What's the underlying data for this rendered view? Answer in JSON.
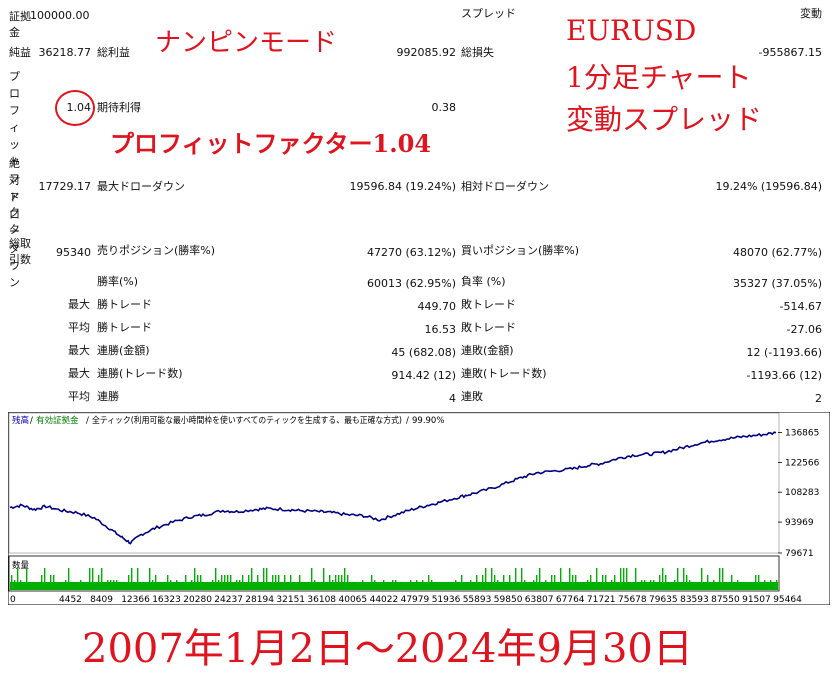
{
  "report": {
    "deposit": {
      "label": "証拠金",
      "value": "100000.00"
    },
    "spread": {
      "label": "スプレッド",
      "value": "変動"
    },
    "net_profit": {
      "label": "純益",
      "value": "36218.77"
    },
    "gross_profit": {
      "label": "総利益",
      "value": "992085.92"
    },
    "gross_loss": {
      "label": "総損失",
      "value": "-955867.15"
    },
    "profit_factor": {
      "label": "プロフィットファクタ",
      "value": "1.04"
    },
    "expected_payoff": {
      "label": "期待利得",
      "value": "0.38"
    },
    "abs_drawdown": {
      "label": "絶対ドローダウン",
      "value": "17729.17"
    },
    "max_drawdown": {
      "label": "最大ドローダウン",
      "value": "19596.84 (19.24%)"
    },
    "rel_drawdown": {
      "label": "相対ドローダウン",
      "value": "19.24% (19596.84)"
    },
    "total_trades": {
      "label": "総取引数",
      "value": "95340"
    },
    "short_positions": {
      "label": "売りポジション(勝率%)",
      "value": "47270 (63.12%)"
    },
    "long_positions": {
      "label": "買いポジション(勝率%)",
      "value": "48070 (62.77%)"
    },
    "win_rate": {
      "label": "勝率(%)",
      "value": "60013 (62.95%)"
    },
    "loss_rate": {
      "label": "負率 (%)",
      "value": "35327 (37.05%)"
    },
    "largest_win": {
      "prefix": "最大",
      "label": "勝トレード",
      "value": "449.70"
    },
    "largest_loss": {
      "label": "敗トレード",
      "value": "-514.67"
    },
    "avg_win": {
      "prefix": "平均",
      "label": "勝トレード",
      "value": "16.53"
    },
    "avg_loss": {
      "label": "敗トレード",
      "value": "-27.06"
    },
    "max_consec_wins": {
      "prefix": "最大",
      "label": "連勝(金額)",
      "value": "45 (682.08)"
    },
    "max_consec_losses": {
      "label": "連敗(金額)",
      "value": "12 (-1193.66)"
    },
    "max_consec_profit": {
      "prefix": "最大",
      "label": "連勝(トレード数)",
      "value": "914.42 (12)"
    },
    "max_consec_loss": {
      "label": "連敗(トレード数)",
      "value": "-1193.66 (12)"
    },
    "avg_consec_wins": {
      "prefix": "平均",
      "label": "連勝",
      "value": "4"
    },
    "avg_consec_losses": {
      "label": "連敗",
      "value": "2"
    }
  },
  "annotations": {
    "mode": "ナンピンモード",
    "pf": "プロフィットファクター1.04",
    "pair": "EURUSD",
    "timeframe": "1分足チャート",
    "spread_type": "変動スプレッド",
    "period": "2007年1月2日～2024年9月30日"
  },
  "chart_header": {
    "balance": "残高",
    "equity": "有効証拠金",
    "model": "全ティック(利用可能な最小時間枠を使いすべてのティックを生成する、最も正確な方式)",
    "quality": "99.90%"
  },
  "volume_label": "数量",
  "colors": {
    "balance": "#000080",
    "volume": "#00b000",
    "annotation": "#e0141e",
    "header_green": "#008000",
    "header_blue": "#0000c0"
  },
  "chart_data": {
    "type": "line",
    "title": "",
    "xlabel": "",
    "ylabel": "",
    "x_ticks": [
      0,
      4452,
      8409,
      12366,
      16323,
      20280,
      24237,
      28194,
      32151,
      36108,
      40065,
      44022,
      47979,
      51936,
      55893,
      59850,
      63807,
      67764,
      71721,
      75678,
      79635,
      83593,
      87550,
      91507,
      95464
    ],
    "y_ticks": [
      79671,
      93969,
      108283,
      122566,
      136865
    ],
    "ylim": [
      79671,
      140000
    ],
    "xlim": [
      0,
      95340
    ],
    "series": [
      {
        "x": [
          0,
          1500,
          3000,
          4452,
          6500,
          8409,
          10500,
          12366,
          13800,
          15000,
          16323,
          18000,
          20280,
          22500,
          24237,
          26500,
          28194,
          30500,
          32151,
          34500,
          36108,
          38500,
          40065,
          42000,
          44022,
          46000,
          47979,
          50000,
          51936,
          53500,
          55893,
          57500,
          59850,
          62000,
          63807,
          65500,
          67764,
          70000,
          71721,
          73500,
          75678,
          77500,
          79635,
          81500,
          83593,
          85500,
          87550,
          89500,
          91507,
          93500,
          95340
        ],
        "y": [
          101000,
          102000,
          100000,
          101500,
          99500,
          98500,
          96000,
          91000,
          87000,
          84000,
          88000,
          91000,
          94000,
          96500,
          97500,
          99500,
          99000,
          100000,
          100500,
          100000,
          99500,
          99000,
          98500,
          97500,
          97000,
          95000,
          97500,
          100000,
          102000,
          103500,
          106000,
          107500,
          110000,
          113000,
          115500,
          117500,
          118500,
          119500,
          121000,
          122000,
          124500,
          126000,
          126500,
          127500,
          129500,
          131500,
          133000,
          134000,
          135000,
          135800,
          136800
        ]
      }
    ],
    "volume_panel": {
      "label": "数量"
    }
  }
}
